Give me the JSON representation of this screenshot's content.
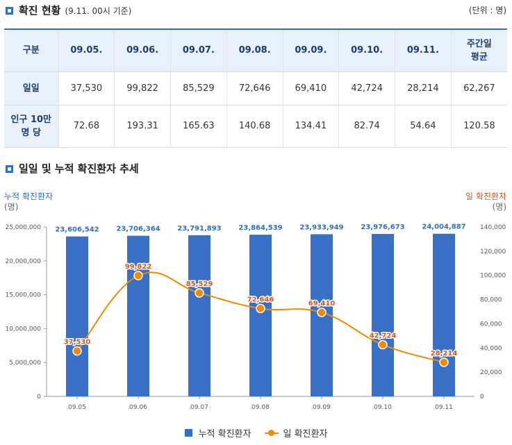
{
  "section1": {
    "title": "확진 현황",
    "subtitle": "(9.11. 00시 기준)",
    "unit": "(단위 : 명)"
  },
  "table": {
    "headers": [
      "구분",
      "09.05.",
      "09.06.",
      "09.07.",
      "09.08.",
      "09.09.",
      "09.10.",
      "09.11.",
      "주간일\n평균"
    ],
    "rows": [
      {
        "label": "일일",
        "values": [
          "37,530",
          "99,822",
          "85,529",
          "72,646",
          "69,410",
          "42,724",
          "28,214",
          "62,267"
        ]
      },
      {
        "label": "인구 10만\n명 당",
        "values": [
          "72.68",
          "193.31",
          "165.63",
          "140.68",
          "134.41",
          "82.74",
          "54.64",
          "120.58"
        ]
      }
    ]
  },
  "section2": {
    "title": "일일 및 누적 확진환자 추세"
  },
  "axis": {
    "left_title": "누적 확진환자",
    "left_unit": "(명)",
    "right_title": "일 확진환자",
    "right_unit": "(명)"
  },
  "legend": {
    "bar_label": "누적 확진환자",
    "line_label": "일 확진환자"
  },
  "colors": {
    "bar": "#3a6fc6",
    "line": "#f08a00",
    "bar_label": "#2f6fc0",
    "line_label": "#e0531c"
  },
  "chart_data": {
    "type": "bar",
    "categories": [
      "09.05",
      "09.06",
      "09.07",
      "09.08",
      "09.09",
      "09.10",
      "09.11"
    ],
    "series": [
      {
        "name": "누적 확진환자",
        "type": "bar",
        "axis": "left",
        "values": [
          23606542,
          23706364,
          23791893,
          23864539,
          23933949,
          23976673,
          24004887
        ],
        "labels": [
          "23,606,542",
          "23,706,364",
          "23,791,893",
          "23,864,539",
          "23,933,949",
          "23,976,673",
          "24,004,887"
        ]
      },
      {
        "name": "일 확진환자",
        "type": "line",
        "axis": "right",
        "values": [
          37530,
          99822,
          85529,
          72646,
          69410,
          42724,
          28214
        ],
        "labels": [
          "37,530",
          "99,822",
          "85,529",
          "72,646",
          "69,410",
          "42,724",
          "28,214"
        ]
      }
    ],
    "left_axis": {
      "min": 0,
      "max": 25000000,
      "ticks": [
        "0",
        "5,000,000",
        "10,000,000",
        "15,000,000",
        "20,000,000",
        "25,000,000"
      ]
    },
    "right_axis": {
      "min": 0,
      "max": 140000,
      "ticks": [
        "0",
        "20,000",
        "40,000",
        "60,000",
        "80,000",
        "100,000",
        "120,000",
        "140,000"
      ]
    }
  }
}
